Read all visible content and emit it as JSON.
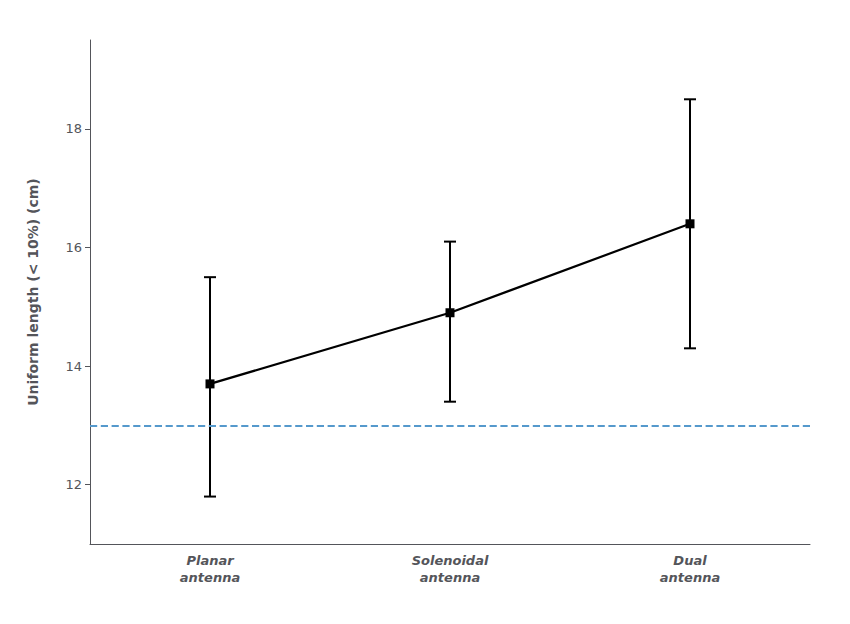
{
  "chart_data": {
    "type": "line",
    "categories": [
      "Planar\nantenna",
      "Solenoidal\nantenna",
      "Dual\nantenna"
    ],
    "values": [
      13.7,
      14.9,
      16.4
    ],
    "error_low": [
      1.9,
      1.5,
      2.1
    ],
    "error_high": [
      1.8,
      1.2,
      2.1
    ],
    "color": "#000000",
    "marker": "square",
    "ylabel": "Uniform length (< 10%) (cm)",
    "ylim": [
      11.0,
      19.5
    ],
    "yticks": [
      12,
      14,
      16,
      18
    ],
    "grid": false,
    "reference_lines": [
      {
        "value": 13.0,
        "color": "#5599cc",
        "line_style": "dashed"
      }
    ]
  }
}
